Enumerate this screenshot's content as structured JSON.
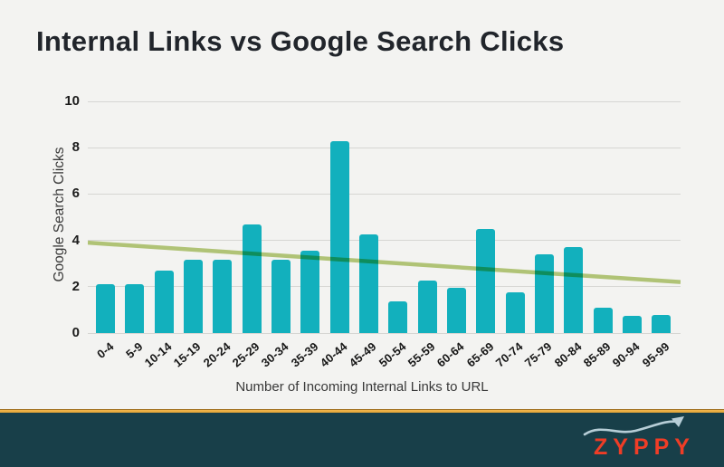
{
  "page": {
    "title": "Internal Links vs Google Search Clicks"
  },
  "chart_data": {
    "type": "bar",
    "title": "Internal Links vs Google Search Clicks",
    "xlabel": "Number of Incoming Internal Links to URL",
    "ylabel": "Google Search Clicks",
    "categories": [
      "0-4",
      "5-9",
      "10-14",
      "15-19",
      "20-24",
      "25-29",
      "30-34",
      "35-39",
      "40-44",
      "45-49",
      "50-54",
      "55-59",
      "60-64",
      "65-69",
      "70-74",
      "75-79",
      "80-84",
      "85-89",
      "90-94",
      "95-99"
    ],
    "values": [
      2.1,
      2.1,
      2.7,
      3.15,
      3.15,
      4.7,
      3.15,
      3.55,
      8.3,
      4.25,
      1.35,
      2.25,
      1.95,
      4.5,
      1.75,
      3.4,
      3.7,
      1.1,
      0.75,
      0.8
    ],
    "y_ticks": [
      0,
      2,
      4,
      6,
      8,
      10
    ],
    "ylim": [
      0,
      10
    ],
    "grid": true,
    "legend": "none",
    "bar_color": "#12b0bd",
    "grid_color": "#d6d6d3",
    "trend_line": {
      "start_value": 3.9,
      "end_value": 2.2,
      "color": "#b9cd7d"
    }
  },
  "footer": {
    "logo_text": "ZYPPY",
    "logo_color": "#ef3d26",
    "arrow_color": "#b7ced7",
    "accent_line_color": "#e9ab3e",
    "background_color": "#183f49"
  }
}
